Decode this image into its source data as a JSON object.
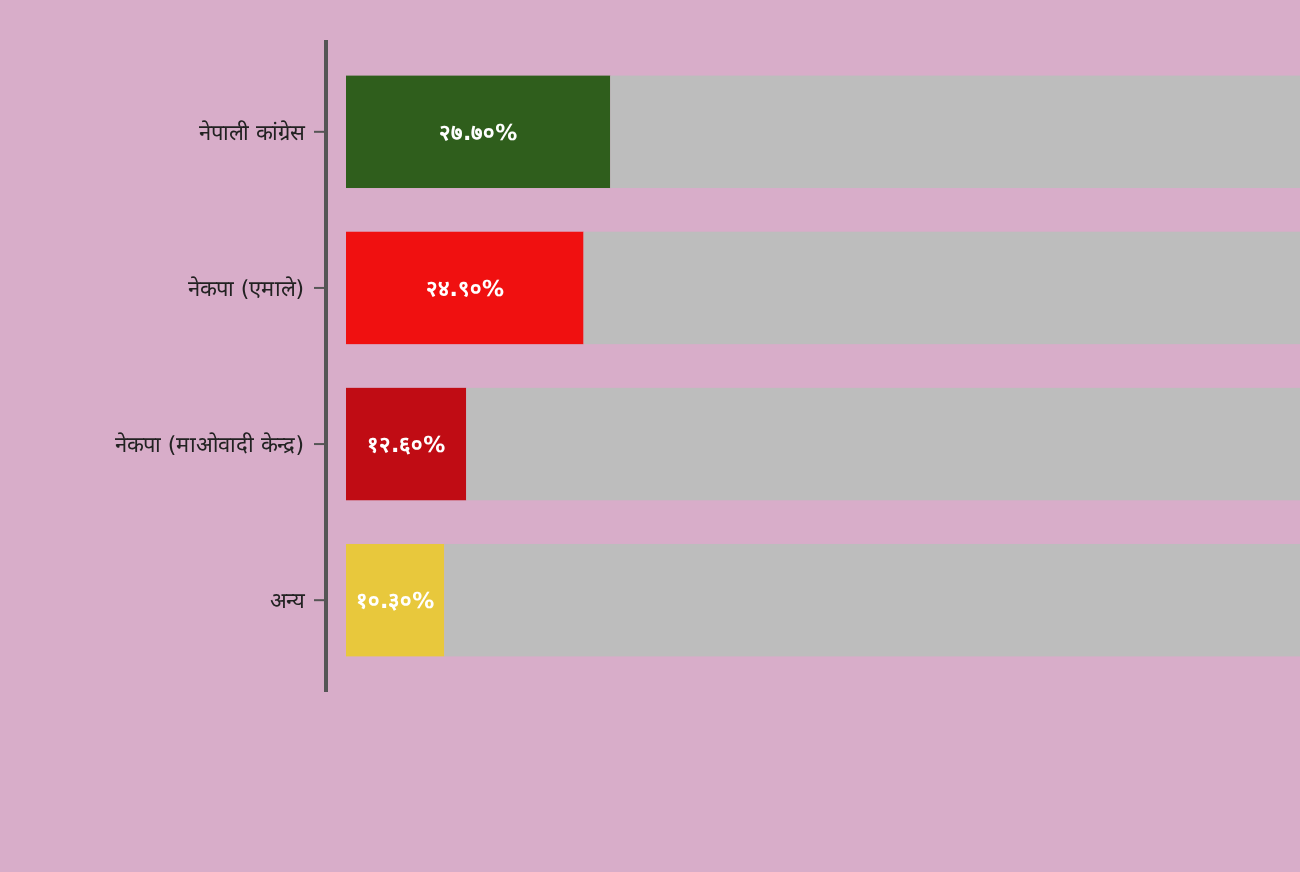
{
  "chart_data": {
    "type": "bar",
    "orientation": "horizontal",
    "stacked": true,
    "categories": [
      "नेपाली कांग्रेस",
      "नेकपा (एमाले)",
      "नेकपा (माओवादी केन्द्र)",
      "अन्य"
    ],
    "series": [
      {
        "colors": [
          "#2f5e1c",
          "#f01010",
          "#c00c14",
          "#e8c83c"
        ],
        "values": [
          27.7,
          24.9,
          12.6,
          10.3
        ],
        "value_labels": [
          "२७.७०%",
          "२४.९०%",
          "१२.६०%",
          "१०.३०%"
        ]
      },
      {
        "color": "#bdbdbd",
        "values": [
          72.3,
          75.1,
          87.4,
          89.7
        ]
      }
    ],
    "xlim": [
      0,
      100
    ],
    "tick_labels": "y"
  }
}
